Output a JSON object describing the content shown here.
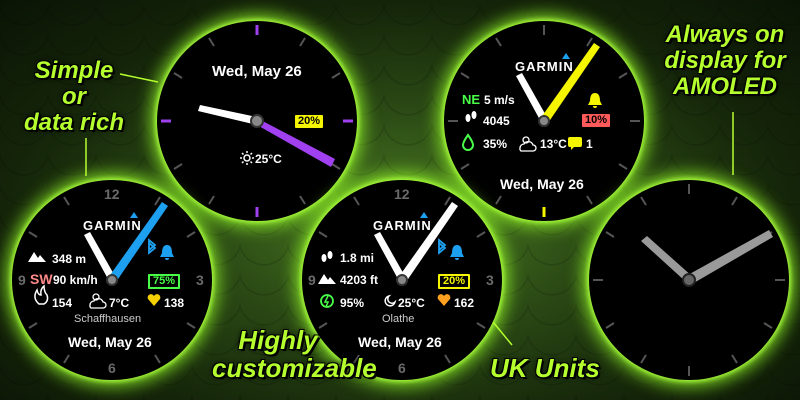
{
  "captions": {
    "simple": "Simple or data rich",
    "simple_lines": [
      "Simple",
      "or",
      "data rich"
    ],
    "custom_lines": [
      "Highly",
      "customizable"
    ],
    "uk": "UK Units",
    "amoled_lines": [
      "Always on",
      "display for",
      "AMOLED"
    ]
  },
  "colors": {
    "accent_green": "#b6ff2e",
    "purple": "#a040f0",
    "yellow": "#f5f500",
    "blue": "#1ea0f0",
    "gray": "#9a9a9a"
  },
  "watch_simple": {
    "date": "Wed, May 26",
    "battery": "20%",
    "battery_color": "#f5f500",
    "weather_icon": "sun-icon",
    "temperature": "25°C"
  },
  "watch_rich_yellow": {
    "brand": "GARMIN",
    "wind_direction": "NE",
    "wind_speed": "5 m/s",
    "steps": "4045",
    "battery": "10%",
    "battery_color": "#ff5a5a",
    "humidity": "35%",
    "temperature": "13°C",
    "notifications": "1",
    "date": "Wed, May 26",
    "icons": [
      "wind-icon",
      "footsteps-icon",
      "bell-icon",
      "water-drop-icon",
      "cloudy-sun-icon",
      "message-icon"
    ]
  },
  "watch_rich_blue": {
    "brand": "GARMIN",
    "numerals": [
      "12",
      "3",
      "6",
      "9"
    ],
    "altitude": "348 m",
    "wind_direction": "SW",
    "wind_speed": "90 km/h",
    "battery": "75%",
    "battery_color": "#48ff48",
    "calories": "154",
    "temperature": "7°C",
    "heart_rate": "138",
    "location": "Schaffhausen",
    "date": "Wed, May 26",
    "icons": [
      "mountain-icon",
      "bluetooth-icon",
      "bell-icon",
      "flame-icon",
      "cloudy-sun-icon",
      "heart-icon"
    ]
  },
  "watch_uk": {
    "brand": "GARMIN",
    "numerals": [
      "12",
      "3",
      "6",
      "9"
    ],
    "distance": "1.8 mi",
    "elevation": "4203 ft",
    "battery": "20%",
    "battery_color": "#f5f500",
    "intensity": "95%",
    "temperature": "25°C",
    "heart_rate": "162",
    "location": "Olathe",
    "date": "Wed, May 26",
    "icons": [
      "footsteps-icon",
      "mountain-icon",
      "bluetooth-icon",
      "bell-icon",
      "lightning-icon",
      "moon-icon",
      "heart-icon"
    ]
  },
  "watch_amoled": {
    "icons": []
  }
}
